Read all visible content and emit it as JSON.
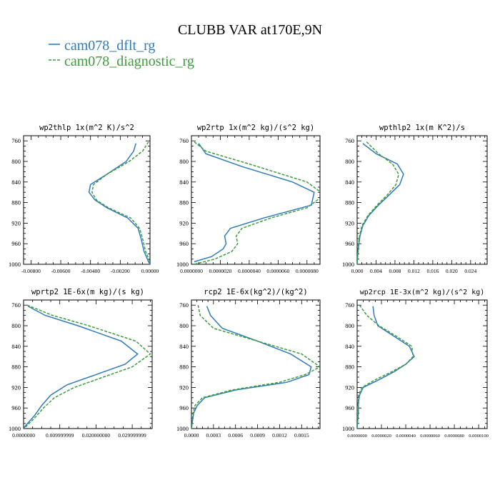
{
  "title": "CLUBB VAR at170E,9N",
  "legend": [
    {
      "name": "cam078_dflt_rg",
      "color": "#2f7bbd",
      "dash": false
    },
    {
      "name": "cam078_diagnostic_rg",
      "color": "#3c9e3a",
      "dash": true
    }
  ],
  "chart_data": [
    {
      "type": "line",
      "title": "wp2thlp   1x(m^2 K)/s^2",
      "xlim": [
        -0.0085,
        0.0
      ],
      "xticks": [
        -0.008,
        -0.006,
        -0.004,
        -0.002,
        0.0
      ],
      "xticklabels": [
        "-0.00800",
        "-0.00600",
        "-0.00400",
        "-0.00200",
        "0.00000"
      ],
      "ylim": [
        1000,
        750
      ],
      "yticks": [
        760,
        800,
        840,
        880,
        920,
        960,
        1000
      ],
      "series": [
        {
          "y": [
            765,
            780,
            800,
            825,
            845,
            860,
            875,
            890,
            910,
            930,
            950,
            975,
            995,
            1000
          ],
          "x": [
            -0.00095,
            -0.0011,
            -0.0016,
            -0.0029,
            -0.004,
            -0.0041,
            -0.0037,
            -0.0029,
            -0.0015,
            -0.0008,
            -0.0006,
            -0.0004,
            -0.0001,
            0.0
          ]
        },
        {
          "y": [
            762,
            780,
            800,
            825,
            845,
            860,
            875,
            890,
            910,
            930,
            950,
            975,
            995,
            1000
          ],
          "x": [
            -0.0001,
            -0.0005,
            -0.0014,
            -0.0029,
            -0.0038,
            -0.0039,
            -0.0036,
            -0.0028,
            -0.0013,
            -0.0007,
            -0.0005,
            -0.0003,
            0.0,
            0.0
          ]
        }
      ]
    },
    {
      "type": "line",
      "title": "wp2rtp   1x(m^2 kg)/(s^2 kg)",
      "xlim": [
        0.0,
        8.9e-06
      ],
      "xticks": [
        0.0,
        2e-06,
        4e-06,
        6e-06,
        8e-06
      ],
      "xticklabels": [
        "0.0000000",
        "0.0000020",
        "0.0000040",
        "0.0000060",
        "0.0000080"
      ],
      "ylim": [
        1000,
        750
      ],
      "yticks": [
        760,
        800,
        840,
        880,
        920,
        960,
        1000
      ],
      "series": [
        {
          "y": [
            765,
            785,
            810,
            840,
            860,
            885,
            910,
            930,
            945,
            960,
            970,
            985,
            995
          ],
          "x": [
            5e-07,
            1e-06,
            3.5e-06,
            7e-06,
            8.5e-06,
            8.3e-06,
            5e-06,
            2.7e-06,
            2.3e-06,
            2.4e-06,
            2.2e-06,
            1.4e-06,
            2e-07
          ]
        },
        {
          "y": [
            762,
            780,
            805,
            840,
            865,
            890,
            910,
            930,
            945,
            960,
            975,
            990,
            1000
          ],
          "x": [
            2e-07,
            1e-06,
            4e-06,
            8e-06,
            9.2e-06,
            8e-06,
            5.5e-06,
            3.5e-06,
            3.1e-06,
            3.2e-06,
            2.8e-06,
            1.6e-06,
            2e-07
          ]
        }
      ]
    },
    {
      "type": "line",
      "title": "wpthlp2   1x(m K^2)/s",
      "xlim": [
        0.0,
        0.0275
      ],
      "xticks": [
        0.0,
        0.004,
        0.008,
        0.012,
        0.016,
        0.02,
        0.024
      ],
      "xticklabels": [
        "0.000",
        "0.004",
        "0.008",
        "0.012",
        "0.016",
        "0.020",
        "0.024"
      ],
      "ylim": [
        1000,
        750
      ],
      "yticks": [
        760,
        800,
        840,
        880,
        920,
        960,
        1000
      ],
      "series": [
        {
          "y": [
            765,
            785,
            805,
            825,
            845,
            865,
            885,
            905,
            925,
            945,
            965,
            985,
            1000
          ],
          "x": [
            0.0012,
            0.004,
            0.0085,
            0.0098,
            0.009,
            0.0068,
            0.0045,
            0.0025,
            0.0012,
            0.0006,
            0.0003,
            0.0001,
            0.0
          ]
        },
        {
          "y": [
            762,
            785,
            805,
            825,
            845,
            865,
            885,
            905,
            925,
            945,
            965,
            985,
            1000
          ],
          "x": [
            0.002,
            0.0045,
            0.0075,
            0.0088,
            0.0082,
            0.0064,
            0.0042,
            0.0023,
            0.001,
            0.0005,
            0.0002,
            0.0001,
            0.0
          ]
        }
      ]
    },
    {
      "type": "line",
      "title": "wprtp2   1E-6x(m kg)/(s kg)",
      "xlim": [
        0.0,
        0.0355
      ],
      "xticks": [
        0.0,
        0.00999999,
        0.02,
        0.0299999
      ],
      "xticklabels": [
        "0.0000000",
        "0.009999999",
        "0.020000000",
        "0.029999999"
      ],
      "ylim": [
        1000,
        750
      ],
      "yticks": [
        760,
        800,
        840,
        880,
        920,
        960,
        1000
      ],
      "series": [
        {
          "y": [
            762,
            780,
            800,
            830,
            855,
            875,
            895,
            915,
            935,
            955,
            975,
            995,
            1000
          ],
          "x": [
            0.0012,
            0.006,
            0.015,
            0.027,
            0.0315,
            0.028,
            0.02,
            0.012,
            0.0075,
            0.005,
            0.003,
            0.0005,
            0.0
          ]
        },
        {
          "y": [
            760,
            780,
            800,
            830,
            855,
            880,
            900,
            920,
            940,
            960,
            980,
            995,
            1000
          ],
          "x": [
            0.001,
            0.008,
            0.018,
            0.031,
            0.035,
            0.03,
            0.022,
            0.014,
            0.0085,
            0.0055,
            0.003,
            0.0008,
            0.0
          ]
        }
      ]
    },
    {
      "type": "line",
      "title": "rcp2   1E-6x(kg^2)/(kg^2)",
      "xlim": [
        0.0,
        0.00175
      ],
      "xticks": [
        0.0,
        0.0003,
        0.0006,
        0.0009,
        0.0012,
        0.0015
      ],
      "xticklabels": [
        "0.0000",
        "0.0003",
        "0.0006",
        "0.0009",
        "0.0012",
        "0.0015"
      ],
      "ylim": [
        1000,
        750
      ],
      "yticks": [
        760,
        800,
        840,
        880,
        920,
        960,
        1000
      ],
      "series": [
        {
          "y": [
            762,
            780,
            805,
            830,
            855,
            880,
            895,
            910,
            925,
            940,
            955,
            970,
            990,
            1000
          ],
          "x": [
            0.00021,
            0.00026,
            0.00042,
            0.0009,
            0.00135,
            0.00163,
            0.0016,
            0.0013,
            0.0006,
            0.00018,
            8e-05,
            3e-05,
            1e-05,
            0.0
          ]
        },
        {
          "y": [
            760,
            780,
            805,
            830,
            855,
            880,
            895,
            910,
            925,
            940,
            955,
            970,
            990,
            1000
          ],
          "x": [
            9e-05,
            0.00012,
            0.0003,
            0.0009,
            0.0015,
            0.00175,
            0.00155,
            0.0012,
            0.00055,
            0.00015,
            5e-05,
            2e-05,
            1e-05,
            0.0
          ]
        }
      ]
    },
    {
      "type": "line",
      "title": "wp2rcp   1E-3x(m^2 kg)/(s^2 kg)",
      "xlim": [
        0.0,
        1.07e-05
      ],
      "xticks": [
        0.0,
        2e-06,
        4e-06,
        6e-06,
        8e-06,
        1e-05
      ],
      "xticklabels": [
        "0.0000000",
        "0.0000020",
        "0.0000040",
        "0.0000060",
        "0.0000080",
        "0.0000100"
      ],
      "ylim": [
        1000,
        750
      ],
      "yticks": [
        760,
        800,
        840,
        880,
        920,
        960,
        1000
      ],
      "series": [
        {
          "y": [
            762,
            780,
            800,
            820,
            840,
            860,
            875,
            890,
            905,
            920,
            935,
            950,
            970,
            1000
          ],
          "x": [
            1.3e-06,
            1.4e-06,
            1.7e-06,
            3e-06,
            4.3e-06,
            4.7e-06,
            4e-06,
            3e-06,
            1.8e-06,
            5e-07,
            2e-07,
            1e-07,
            1e-07,
            0.0
          ]
        },
        {
          "y": [
            760,
            780,
            800,
            820,
            840,
            860,
            875,
            890,
            905,
            920,
            935,
            950,
            970,
            1000
          ],
          "x": [
            2e-07,
            8e-07,
            1.8e-06,
            3.2e-06,
            4.5e-06,
            4.6e-06,
            4e-06,
            2.8e-06,
            1.5e-06,
            4e-07,
            1e-07,
            1e-07,
            0.0,
            0.0
          ]
        }
      ]
    }
  ]
}
